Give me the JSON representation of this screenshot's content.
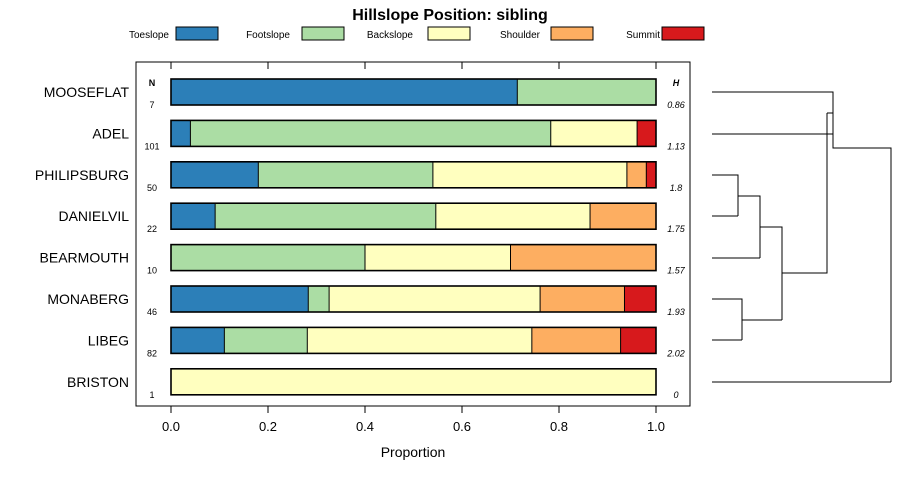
{
  "chart_data": {
    "type": "bar",
    "subtype": "stacked-horizontal-proportion",
    "title": "Hillslope Position: sibling",
    "xlabel": "Proportion",
    "ylabel": "",
    "xlim": [
      0,
      1
    ],
    "xticks": [
      "0.0",
      "0.2",
      "0.4",
      "0.6",
      "0.8",
      "1.0"
    ],
    "xtick_values": [
      0,
      0.2,
      0.4,
      0.6,
      0.8,
      1.0
    ],
    "n_header": "N",
    "h_header": "H",
    "legend": [
      {
        "name": "Toeslope",
        "color": "#2c7fb8"
      },
      {
        "name": "Footslope",
        "color": "#abdda4"
      },
      {
        "name": "Backslope",
        "color": "#ffffbf"
      },
      {
        "name": "Shoulder",
        "color": "#fdae61"
      },
      {
        "name": "Summit",
        "color": "#d7191c"
      }
    ],
    "rows": [
      {
        "label": "MOOSEFLAT",
        "n": "7",
        "h": "0.86",
        "values": [
          0.714,
          0.286,
          0,
          0,
          0
        ]
      },
      {
        "label": "ADEL",
        "n": "101",
        "h": "1.13",
        "values": [
          0.04,
          0.743,
          0.178,
          0,
          0.039
        ]
      },
      {
        "label": "PHILIPSBURG",
        "n": "50",
        "h": "1.8",
        "values": [
          0.18,
          0.36,
          0.4,
          0.04,
          0.02
        ]
      },
      {
        "label": "DANIELVIL",
        "n": "22",
        "h": "1.75",
        "values": [
          0.091,
          0.455,
          0.318,
          0.136,
          0
        ]
      },
      {
        "label": "BEARMOUTH",
        "n": "10",
        "h": "1.57",
        "values": [
          0,
          0.4,
          0.3,
          0.3,
          0
        ]
      },
      {
        "label": "MONABERG",
        "n": "46",
        "h": "1.93",
        "values": [
          0.283,
          0.043,
          0.435,
          0.174,
          0.065
        ]
      },
      {
        "label": "LIBEG",
        "n": "82",
        "h": "2.02",
        "values": [
          0.11,
          0.171,
          0.463,
          0.183,
          0.073
        ]
      },
      {
        "label": "BRISTON",
        "n": "1",
        "h": "0",
        "values": [
          0,
          0,
          1,
          0,
          0
        ]
      }
    ]
  }
}
